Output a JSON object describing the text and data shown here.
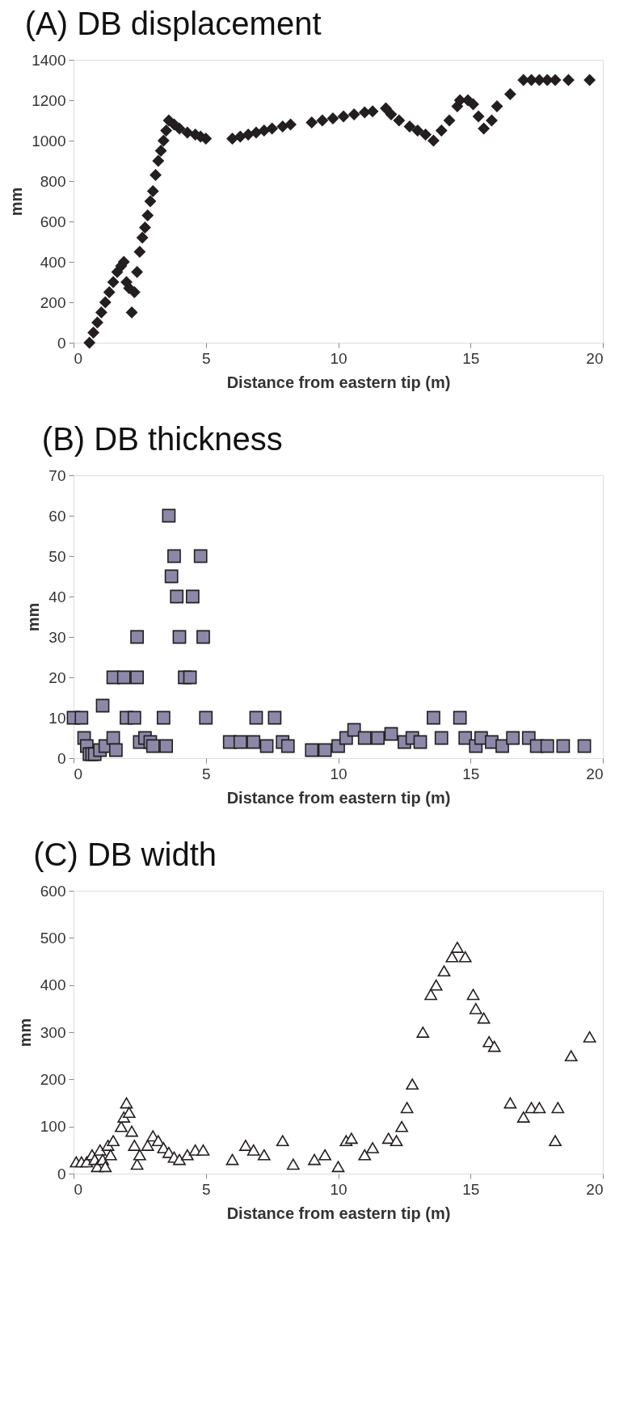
{
  "chart_data": [
    {
      "type": "scatter",
      "title": "(A) DB displacement",
      "xlabel": "Distance from eastern tip (m)",
      "ylabel": "mm",
      "marker": "diamond",
      "grid": false,
      "xlim": [
        0,
        20
      ],
      "xticks": [
        0,
        5,
        10,
        15,
        20
      ],
      "ylim": [
        0,
        1400
      ],
      "yticks": [
        0,
        200,
        400,
        600,
        800,
        1000,
        1200,
        1400
      ],
      "series": [
        {
          "color": "#231f20",
          "x": [
            0.6,
            0.75,
            0.9,
            1.05,
            1.2,
            1.35,
            1.5,
            1.65,
            1.8,
            1.9,
            2.0,
            2.1,
            2.2,
            2.3,
            2.4,
            2.5,
            2.6,
            2.7,
            2.8,
            2.9,
            3.0,
            3.1,
            3.2,
            3.3,
            3.4,
            3.5,
            3.6,
            3.8,
            4.0,
            4.3,
            4.6,
            4.8,
            5.0,
            6.0,
            6.3,
            6.6,
            6.9,
            7.2,
            7.5,
            7.9,
            8.2,
            9.0,
            9.4,
            9.8,
            10.2,
            10.6,
            11.0,
            11.3,
            11.8,
            12.0,
            12.3,
            12.7,
            13.0,
            13.3,
            13.6,
            13.9,
            14.2,
            14.5,
            14.6,
            14.9,
            15.1,
            15.3,
            15.5,
            15.8,
            16.0,
            16.5,
            17.0,
            17.3,
            17.6,
            17.9,
            18.2,
            18.7,
            19.5
          ],
          "values": [
            0,
            50,
            100,
            150,
            200,
            250,
            300,
            350,
            380,
            400,
            300,
            270,
            150,
            250,
            350,
            450,
            520,
            570,
            630,
            700,
            750,
            830,
            900,
            950,
            1000,
            1050,
            1100,
            1080,
            1060,
            1040,
            1030,
            1020,
            1010,
            1010,
            1020,
            1030,
            1040,
            1050,
            1060,
            1070,
            1080,
            1090,
            1100,
            1110,
            1120,
            1130,
            1140,
            1145,
            1160,
            1130,
            1100,
            1070,
            1050,
            1030,
            1000,
            1050,
            1100,
            1170,
            1200,
            1200,
            1180,
            1120,
            1060,
            1100,
            1170,
            1230,
            1300,
            1300,
            1300,
            1300,
            1300,
            1300,
            1300
          ]
        }
      ]
    },
    {
      "type": "scatter",
      "title": "(B) DB thickness",
      "xlabel": "Distance from eastern tip (m)",
      "ylabel": "mm",
      "marker": "square",
      "grid": false,
      "xlim": [
        0,
        20
      ],
      "xticks": [
        0,
        5,
        10,
        15,
        20
      ],
      "ylim": [
        0,
        70
      ],
      "yticks": [
        0,
        10,
        20,
        30,
        40,
        50,
        60,
        70
      ],
      "series": [
        {
          "color": "#8c89a8",
          "x": [
            0,
            0.3,
            0.4,
            0.5,
            0.6,
            0.7,
            0.8,
            1.0,
            1.1,
            1.2,
            1.5,
            1.6,
            1.5,
            1.9,
            2.4,
            2.0,
            2.3,
            2.4,
            2.5,
            2.7,
            2.9,
            3.0,
            3.4,
            3.5,
            3.6,
            3.7,
            3.8,
            3.9,
            4.0,
            4.2,
            4.4,
            4.5,
            4.8,
            4.9,
            5.0,
            5.9,
            6.3,
            6.8,
            6.9,
            7.3,
            7.6,
            7.9,
            8.1,
            9.0,
            9.5,
            10.0,
            10.3,
            10.6,
            11.0,
            11.5,
            12.0,
            12.5,
            12.8,
            13.1,
            13.6,
            13.9,
            14.6,
            14.8,
            15.2,
            15.4,
            15.8,
            16.2,
            16.6,
            17.2,
            17.5,
            17.9,
            18.5,
            19.3
          ],
          "values": [
            10,
            10,
            5,
            3,
            1,
            1,
            1,
            2,
            13,
            3,
            5,
            2,
            20,
            20,
            20,
            10,
            10,
            30,
            4,
            5,
            4,
            3,
            10,
            3,
            60,
            45,
            50,
            40,
            30,
            20,
            20,
            40,
            50,
            30,
            10,
            4,
            4,
            4,
            10,
            3,
            10,
            4,
            3,
            2,
            2,
            3,
            5,
            7,
            5,
            5,
            6,
            4,
            5,
            4,
            10,
            5,
            10,
            5,
            3,
            5,
            4,
            3,
            5,
            5,
            3,
            3,
            3,
            3
          ]
        }
      ]
    },
    {
      "type": "scatter",
      "title": "(C) DB width",
      "xlabel": "Distance from eastern tip (m)",
      "ylabel": "mm",
      "marker": "triangle",
      "grid": false,
      "xlim": [
        0,
        20
      ],
      "xticks": [
        0,
        5,
        10,
        15,
        20
      ],
      "ylim": [
        0,
        600
      ],
      "yticks": [
        0,
        100,
        200,
        300,
        400,
        500,
        600
      ],
      "series": [
        {
          "color": "#231f20",
          "x": [
            0.1,
            0.3,
            0.5,
            0.7,
            0.8,
            0.9,
            1.0,
            1.1,
            1.2,
            1.3,
            1.4,
            1.5,
            1.8,
            1.9,
            2.0,
            2.1,
            2.2,
            2.3,
            2.4,
            2.5,
            2.8,
            3.0,
            3.2,
            3.4,
            3.6,
            3.8,
            4.0,
            4.3,
            4.6,
            4.9,
            6.0,
            6.5,
            6.8,
            7.2,
            7.9,
            8.3,
            9.1,
            9.5,
            10.0,
            10.3,
            10.5,
            11.0,
            11.3,
            11.9,
            12.2,
            12.4,
            12.6,
            12.8,
            13.2,
            13.5,
            13.7,
            14.0,
            14.3,
            14.5,
            14.8,
            15.1,
            15.2,
            15.5,
            15.7,
            15.9,
            16.5,
            17.0,
            17.3,
            17.6,
            18.2,
            18.3,
            18.8,
            19.5
          ],
          "values": [
            25,
            25,
            25,
            40,
            30,
            15,
            50,
            30,
            15,
            60,
            40,
            70,
            100,
            120,
            150,
            130,
            90,
            60,
            20,
            40,
            60,
            80,
            70,
            55,
            45,
            35,
            30,
            40,
            50,
            50,
            30,
            60,
            50,
            40,
            70,
            20,
            30,
            40,
            15,
            70,
            75,
            40,
            55,
            75,
            70,
            100,
            140,
            190,
            300,
            380,
            400,
            430,
            460,
            480,
            460,
            380,
            350,
            330,
            280,
            270,
            150,
            120,
            140,
            140,
            70,
            140,
            250,
            290
          ]
        }
      ]
    }
  ]
}
